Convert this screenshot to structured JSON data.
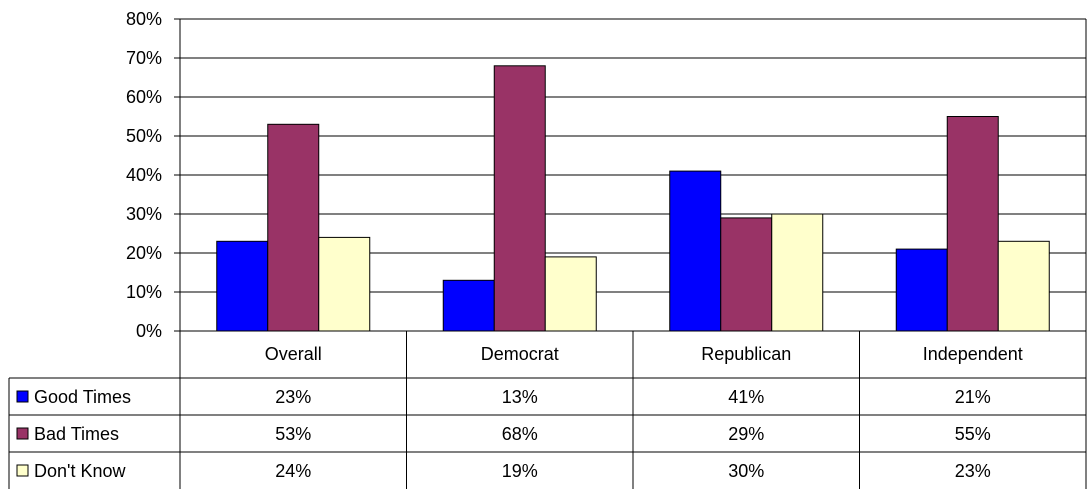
{
  "chart_data": {
    "type": "bar",
    "categories": [
      "Overall",
      "Democrat",
      "Republican",
      "Independent"
    ],
    "series": [
      {
        "name": "Good Times",
        "color": "#0000FF",
        "values": [
          23,
          13,
          41,
          21
        ],
        "labels": [
          "23%",
          "13%",
          "41%",
          "21%"
        ]
      },
      {
        "name": "Bad Times",
        "color": "#993366",
        "values": [
          53,
          68,
          29,
          55
        ],
        "labels": [
          "53%",
          "68%",
          "29%",
          "55%"
        ]
      },
      {
        "name": "Don't Know",
        "color": "#FFFFCC",
        "values": [
          24,
          19,
          30,
          23
        ],
        "labels": [
          "24%",
          "19%",
          "30%",
          "23%"
        ]
      }
    ],
    "yticks": [
      "0%",
      "10%",
      "20%",
      "30%",
      "40%",
      "50%",
      "60%",
      "70%",
      "80%"
    ],
    "ylim": [
      0,
      80
    ],
    "grid": true,
    "legend": "data-table"
  }
}
